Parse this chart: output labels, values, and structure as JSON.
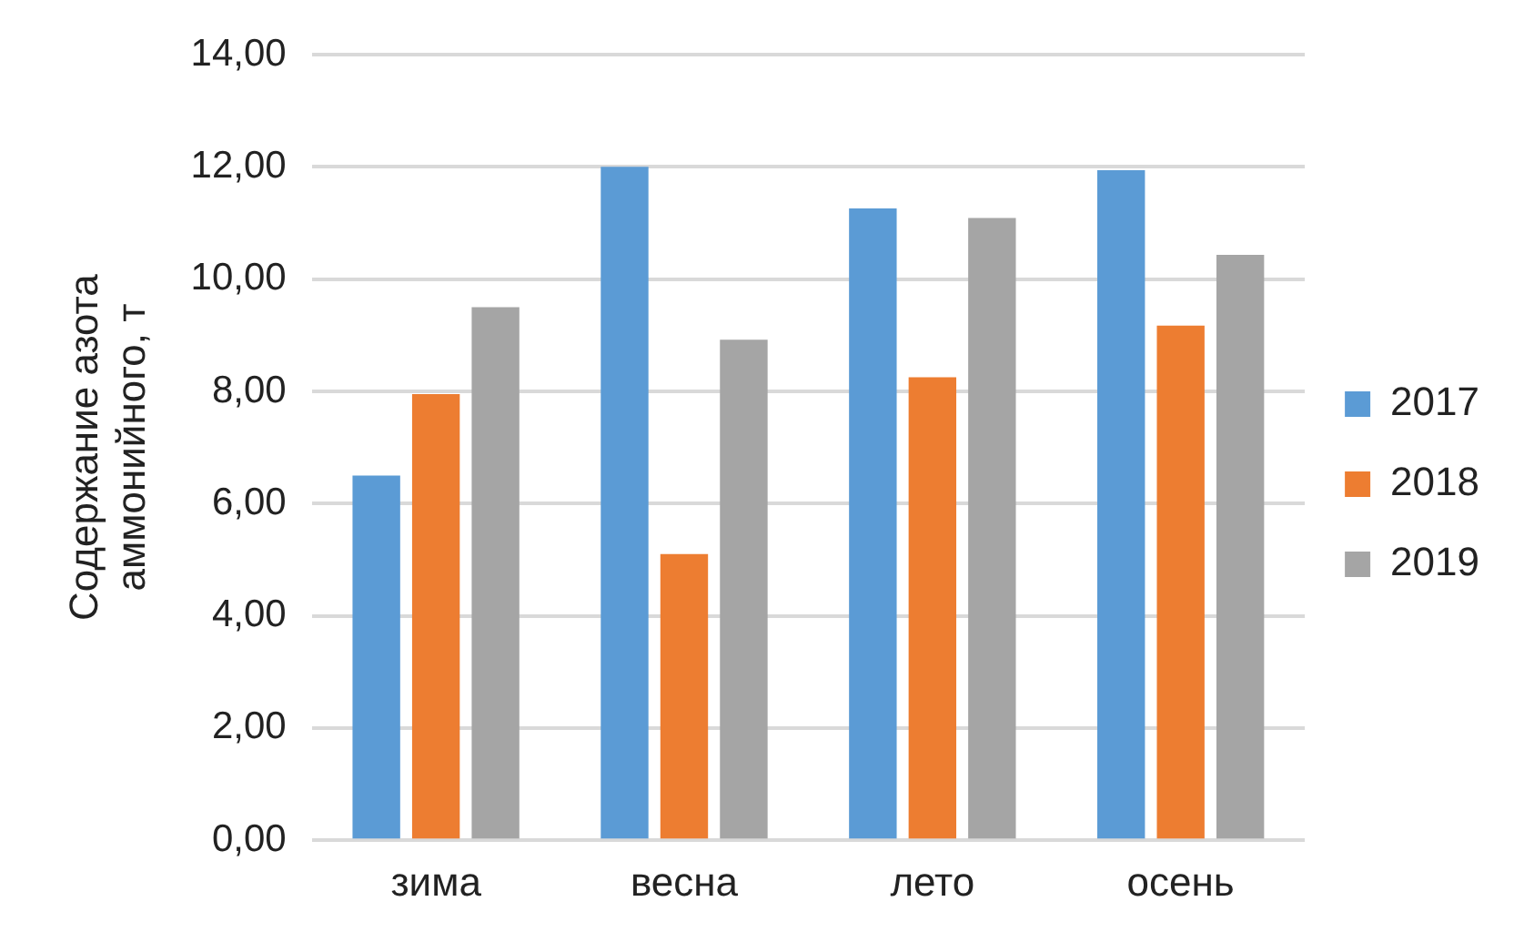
{
  "chart_data": {
    "type": "bar",
    "ylabel": "Содержание азота аммонийного, т",
    "categories": [
      "зима",
      "весна",
      "лето",
      "осень"
    ],
    "series": [
      {
        "name": "2017",
        "color": "#5b9bd5",
        "values": [
          6.5,
          12.0,
          11.26,
          11.94
        ]
      },
      {
        "name": "2018",
        "color": "#ed7d31",
        "values": [
          7.95,
          5.1,
          8.25,
          9.17
        ]
      },
      {
        "name": "2019",
        "color": "#a5a5a5",
        "values": [
          9.5,
          8.92,
          11.09,
          10.43
        ]
      }
    ],
    "ylim": [
      0,
      14
    ],
    "yticks": [
      {
        "value": 0,
        "label": "0,00"
      },
      {
        "value": 2,
        "label": "2,00"
      },
      {
        "value": 4,
        "label": "4,00"
      },
      {
        "value": 6,
        "label": "6,00"
      },
      {
        "value": 8,
        "label": "8,00"
      },
      {
        "value": 10,
        "label": "10,00"
      },
      {
        "value": 12,
        "label": "12,00"
      },
      {
        "value": 14,
        "label": "14,00"
      }
    ],
    "grid": "y",
    "legend": "right"
  }
}
